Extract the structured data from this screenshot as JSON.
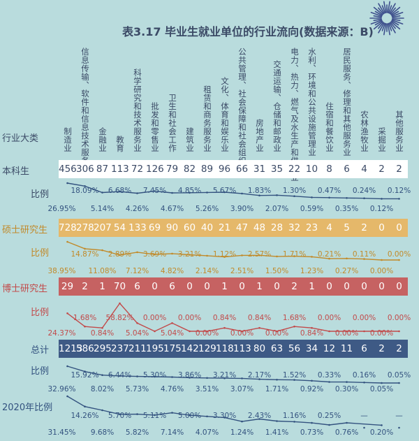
{
  "title": "表3.17 毕业生就业单位的行业流向(数据来源：B)",
  "row_labels": {
    "industry": "行业大类",
    "bachelor": "本科生",
    "bachelor_ratio": "比例",
    "master": "硕士研究生",
    "master_ratio": "比例",
    "phd": "博士研究生",
    "phd_ratio": "比例",
    "total": "总计",
    "total_ratio": "比例",
    "y2020": "2020年比例"
  },
  "colors": {
    "background": "#b9dcdd",
    "label_dark": "#3b4a66",
    "bachelor_band": "#ffffff",
    "master_band": "#e5b86a",
    "master_text": "#c18a2a",
    "phd_band": "#c66262",
    "phd_text": "#c24a4a",
    "total_band": "#3e5a85",
    "total_text": "#33527f"
  },
  "chart_data": {
    "type": "table",
    "title": "表3.17 毕业生就业单位的行业流向(数据来源：B)",
    "categories": [
      "制造业",
      "信息传输、软件和信息技术服务业",
      "金融业",
      "教育",
      "科学研究和技术服务业",
      "批发和零售业",
      "卫生和社会工作",
      "建筑业",
      "租赁和商务服务业",
      "文化、体育和娱乐业",
      "公共管理、社会保障和社会组织",
      "房地产业",
      "交通运输、仓储和邮政业",
      "电力、热力、燃气及水生产和供应业",
      "水利、环境和公共设施管理业",
      "住宿和餐饮业",
      "居民服务、修理和其他服务业",
      "农林渔牧业",
      "采掘业",
      "其他服务业"
    ],
    "series": [
      {
        "name": "本科生",
        "values": [
          456,
          306,
          87,
          113,
          72,
          126,
          79,
          82,
          89,
          96,
          66,
          31,
          35,
          22,
          10,
          8,
          6,
          4,
          2,
          2
        ]
      },
      {
        "name": "本科生比例",
        "labels": [
          "26.95%",
          "18.09%",
          "5.14%",
          "6.68%",
          "4.26%",
          "7.45%",
          "4.67%",
          "4.85%",
          "5.26%",
          "5.67%",
          "3.90%",
          "1.83%",
          "2.07%",
          "1.30%",
          "0.59%",
          "0.47%",
          "0.35%",
          "0.24%",
          "0.12%",
          "0.12%"
        ]
      },
      {
        "name": "硕士研究生",
        "values": [
          728,
          278,
          207,
          54,
          133,
          69,
          90,
          60,
          40,
          21,
          47,
          48,
          28,
          32,
          23,
          4,
          5,
          2,
          0,
          0
        ]
      },
      {
        "name": "硕士研究生比例",
        "labels": [
          "38.95%",
          "14.87%",
          "11.08%",
          "2.89%",
          "7.12%",
          "3.69%",
          "4.82%",
          "3.21%",
          "2.14%",
          "1.12%",
          "2.51%",
          "2.57%",
          "1.50%",
          "1.71%",
          "1.23%",
          "0.21%",
          "0.27%",
          "0.11%",
          "0.00%",
          "0.00%"
        ]
      },
      {
        "name": "博士研究生",
        "values": [
          29,
          2,
          1,
          70,
          6,
          0,
          6,
          0,
          0,
          1,
          0,
          1,
          0,
          2,
          1,
          0,
          0,
          0,
          0,
          0
        ]
      },
      {
        "name": "博士研究生比例",
        "labels": [
          "24.37%",
          "1.68%",
          "0.84%",
          "58.82%",
          "5.04%",
          "0.00%",
          "5.04%",
          "0.00%",
          "0.00%",
          "0.84%",
          "0.00%",
          "0.84%",
          "0.00%",
          "1.68%",
          "0.84%",
          "0.00%",
          "0.00%",
          "0.00%",
          "0.00%",
          "0.00%"
        ]
      },
      {
        "name": "总计",
        "values": [
          1213,
          586,
          295,
          237,
          211,
          195,
          175,
          142,
          129,
          118,
          113,
          80,
          63,
          56,
          34,
          12,
          11,
          6,
          2,
          2
        ]
      },
      {
        "name": "总计比例",
        "labels": [
          "32.96%",
          "15.92%",
          "8.02%",
          "6.44%",
          "5.73%",
          "5.30%",
          "4.76%",
          "3.86%",
          "3.51%",
          "3.21%",
          "3.07%",
          "2.17%",
          "1.71%",
          "1.52%",
          "0.92%",
          "0.33%",
          "0.30%",
          "0.16%",
          "0.05%",
          "0.05%"
        ]
      },
      {
        "name": "2020年比例",
        "labels": [
          "31.45%",
          "14.26%",
          "9.68%",
          "5.70%",
          "5.82%",
          "5.11%",
          "7.14%",
          "5.00%",
          "4.07%",
          "3.30%",
          "1.24%",
          "2.43%",
          "1.41%",
          "1.16%",
          "0.73%",
          "0.25%",
          "0.76%",
          "—",
          "0.20%",
          "—"
        ]
      }
    ]
  }
}
